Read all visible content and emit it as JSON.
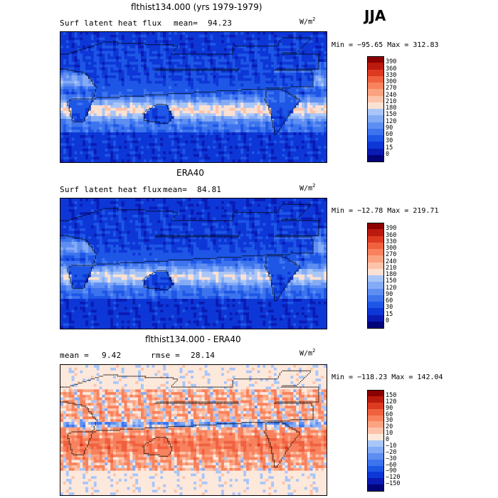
{
  "season": "JJA",
  "colors": {
    "pos": [
      "#03037a",
      "#0a1bb3",
      "#0d37d6",
      "#1e56e6",
      "#3d74ee",
      "#5e8ef2",
      "#84abf5",
      "#a9c6f8",
      "#cfdefb",
      "#fbe1d3",
      "#fcc3aa",
      "#fba381",
      "#f8825e",
      "#f06140",
      "#dd3a22",
      "#bb1a0e",
      "#8b0000"
    ],
    "diff": [
      "#03037a",
      "#0a1bb3",
      "#0d37d6",
      "#1e56e6",
      "#3d74ee",
      "#5e8ef2",
      "#84abf5",
      "#a9c6f8",
      "#dce8fb",
      "#fde8dc",
      "#fcc3aa",
      "#fba381",
      "#f8825e",
      "#f06140",
      "#dd3a22",
      "#bb1a0e",
      "#8b0000"
    ]
  },
  "panels": [
    {
      "title": "flthist134.000 (yrs 1979-1979)",
      "subtitle_left": "Surf latent heat flux",
      "mean_label": "mean=",
      "mean_value": "94.23",
      "units": "W/m",
      "units_exp": "2",
      "minmax": "Min = −95.65 Max = 312.83"
    },
    {
      "title": "ERA40",
      "subtitle_left": "Surf latent heat flux",
      "mean_label": "mean=",
      "mean_value": "84.81",
      "units": "W/m",
      "units_exp": "2",
      "minmax": "Min = −12.78 Max = 219.71"
    },
    {
      "title": "flthist134.000 - ERA40",
      "subtitle_left": "mean =",
      "mean_label": "rmse =",
      "mean_value": "9.42",
      "rmse_value": "28.14",
      "units": "W/m",
      "units_exp": "2",
      "minmax": "Min = −118.23 Max = 142.04"
    }
  ],
  "chart_data": [
    {
      "type": "heatmap",
      "title": "flthist134.000 (yrs 1979-1979)",
      "variable": "Surf latent heat flux",
      "units": "W/m^2",
      "mean": 94.23,
      "min": -95.65,
      "max": 312.83,
      "colorbar_levels": [
        0,
        15,
        30,
        60,
        90,
        120,
        150,
        180,
        210,
        240,
        270,
        300,
        330,
        360,
        390
      ],
      "colorbar_labels": [
        "390",
        "360",
        "330",
        "300",
        "270",
        "240",
        "210",
        "180",
        "150",
        "120",
        "90",
        "60",
        "30",
        "15",
        "0"
      ]
    },
    {
      "type": "heatmap",
      "title": "ERA40",
      "variable": "Surf latent heat flux",
      "units": "W/m^2",
      "mean": 84.81,
      "min": -12.78,
      "max": 219.71,
      "colorbar_levels": [
        0,
        15,
        30,
        60,
        90,
        120,
        150,
        180,
        210,
        240,
        270,
        300,
        330,
        360,
        390
      ],
      "colorbar_labels": [
        "390",
        "360",
        "330",
        "300",
        "270",
        "240",
        "210",
        "180",
        "150",
        "120",
        "90",
        "60",
        "30",
        "15",
        "0"
      ]
    },
    {
      "type": "heatmap",
      "title": "flthist134.000 - ERA40",
      "units": "W/m^2",
      "mean": 9.42,
      "rmse": 28.14,
      "min": -118.23,
      "max": 142.04,
      "colorbar_levels": [
        -150,
        -120,
        -90,
        -60,
        -30,
        -20,
        -10,
        0,
        10,
        20,
        30,
        60,
        90,
        120,
        150
      ],
      "colorbar_labels": [
        "150",
        "120",
        "90",
        "60",
        "30",
        "20",
        "10",
        "0",
        "−10",
        "−20",
        "−30",
        "−60",
        "−90",
        "−120",
        "−150"
      ]
    }
  ]
}
